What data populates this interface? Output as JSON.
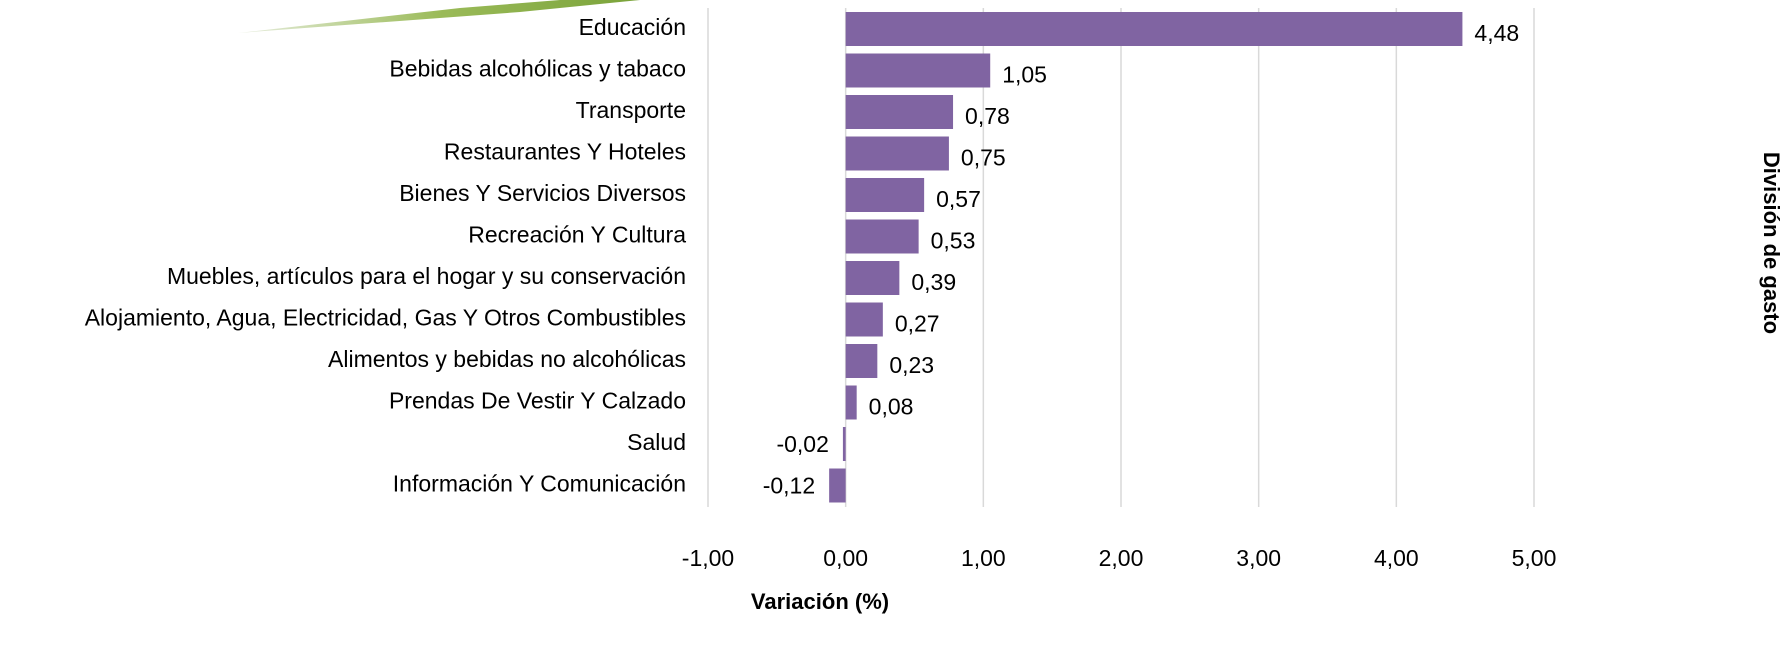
{
  "chart_data": {
    "type": "bar",
    "orientation": "horizontal",
    "x_label": "Variación (%)",
    "y_label": "División de gasto",
    "categories": [
      "Educación",
      "Bebidas alcohólicas y tabaco",
      "Transporte",
      "Restaurantes Y Hoteles",
      "Bienes Y Servicios Diversos",
      "Recreación Y Cultura",
      "Muebles, artículos para el hogar y su conservación",
      "Alojamiento, Agua, Electricidad, Gas Y Otros Combustibles",
      "Alimentos y bebidas no alcohólicas",
      "Prendas De Vestir Y Calzado",
      "Salud",
      "Información Y Comunicación"
    ],
    "values": [
      4.48,
      1.05,
      0.78,
      0.75,
      0.57,
      0.53,
      0.39,
      0.27,
      0.23,
      0.08,
      -0.02,
      -0.12
    ],
    "value_labels": [
      "4,48",
      "1,05",
      "0,78",
      "0,75",
      "0,57",
      "0,53",
      "0,39",
      "0,27",
      "0,23",
      "0,08",
      "-0,02",
      "-0,12"
    ],
    "color": "#8064a2",
    "xlim": [
      -1,
      5
    ],
    "xticks": [
      {
        "value": -1,
        "label": "-1,00"
      },
      {
        "value": 0,
        "label": "0,00"
      },
      {
        "value": 1,
        "label": "1,00"
      },
      {
        "value": 2,
        "label": "2,00"
      },
      {
        "value": 3,
        "label": "3,00"
      },
      {
        "value": 4,
        "label": "4,00"
      },
      {
        "value": 5,
        "label": "5,00"
      }
    ],
    "grid": true
  }
}
